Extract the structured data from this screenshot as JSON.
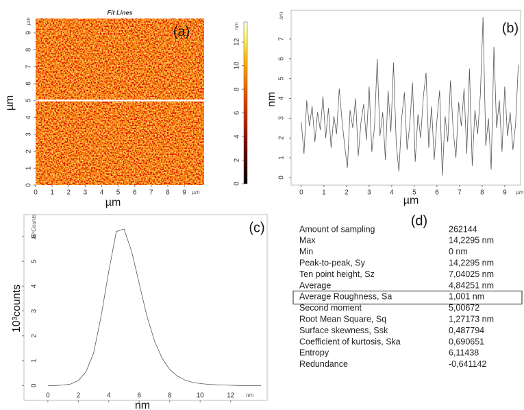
{
  "chart_data": [
    {
      "type": "heatmap",
      "title": "Fit Lines",
      "panel": "(a)",
      "xlabel": "µm",
      "ylabel": "µm",
      "axis_unit": "µm",
      "xlim": [
        0,
        10.2
      ],
      "ylim": [
        0,
        9.85
      ],
      "xticks": [
        0,
        1,
        2,
        3,
        4,
        5,
        6,
        7,
        8,
        9
      ],
      "yticks": [
        0,
        1,
        2,
        3,
        4,
        5,
        6,
        7,
        8,
        9
      ],
      "profile_line": 5,
      "colorbar_unit": "nm",
      "zlim": [
        0,
        13.7
      ],
      "zticks": [
        0,
        2,
        4,
        6,
        8,
        10,
        12
      ]
    },
    {
      "type": "line",
      "panel": "(b)",
      "xlabel": "µm",
      "ylabel": "nm",
      "x_unit": "µm",
      "y_unit": "nm",
      "color": "#555555",
      "xlim": [
        -0.45,
        9.7
      ],
      "ylim": [
        -0.38,
        8.45
      ],
      "xticks": [
        0,
        1,
        2,
        3,
        4,
        5,
        6,
        7,
        8,
        9
      ],
      "yticks": [
        0,
        1,
        2,
        3,
        4,
        5,
        6,
        7
      ],
      "x": [
        0,
        0.12,
        0.24,
        0.36,
        0.48,
        0.6,
        0.72,
        0.84,
        0.96,
        1.08,
        1.2,
        1.32,
        1.44,
        1.56,
        1.68,
        1.8,
        1.92,
        2.04,
        2.16,
        2.28,
        2.4,
        2.52,
        2.64,
        2.76,
        2.88,
        3,
        3.12,
        3.24,
        3.36,
        3.48,
        3.6,
        3.72,
        3.84,
        3.96,
        4.08,
        4.2,
        4.32,
        4.44,
        4.56,
        4.68,
        4.8,
        4.92,
        5.04,
        5.16,
        5.28,
        5.4,
        5.52,
        5.64,
        5.76,
        5.88,
        6,
        6.12,
        6.24,
        6.36,
        6.48,
        6.6,
        6.72,
        6.84,
        6.96,
        7.08,
        7.2,
        7.32,
        7.44,
        7.56,
        7.68,
        7.8,
        7.92,
        8.04,
        8.16,
        8.28,
        8.4,
        8.52,
        8.64,
        8.76,
        8.88,
        9,
        9.12,
        9.24,
        9.36,
        9.48,
        9.6
      ],
      "values": [
        2.8,
        1.2,
        3.9,
        2.6,
        3.6,
        1.8,
        3.3,
        2.4,
        4.1,
        2.0,
        3.5,
        1.5,
        3.1,
        2.2,
        4.5,
        2.9,
        1.6,
        0.5,
        3.4,
        2.5,
        4.0,
        1.1,
        2.8,
        3.7,
        1.9,
        4.6,
        1.3,
        2.6,
        6.0,
        2.1,
        3.3,
        0.9,
        4.4,
        2.3,
        5.8,
        1.7,
        0.3,
        3.0,
        4.3,
        1.4,
        2.7,
        4.8,
        0.8,
        3.2,
        2.0,
        4.1,
        5.3,
        1.5,
        3.6,
        0.9,
        2.9,
        4.4,
        0.1,
        3.1,
        1.8,
        4.9,
        2.4,
        1.0,
        3.8,
        2.6,
        4.5,
        1.2,
        5.5,
        0.6,
        3.4,
        2.2,
        4.2,
        8.1,
        1.6,
        3.0,
        0.4,
        6.6,
        2.5,
        3.9,
        1.3,
        4.6,
        2.1,
        3.3,
        1.4,
        2.7,
        5.7
      ]
    },
    {
      "type": "line",
      "panel": "(c)",
      "xlabel": "nm",
      "ylabel": "10³counts",
      "x_unit": "nm",
      "y_unit": "10³Counts",
      "color": "#555555",
      "xlim": [
        -1.57,
        14.4
      ],
      "ylim": [
        -0.6,
        6.88
      ],
      "xticks": [
        0,
        2,
        4,
        6,
        8,
        10,
        12
      ],
      "yticks": [
        0,
        1,
        2,
        3,
        4,
        5,
        6
      ],
      "x": [
        0,
        0.5,
        1,
        1.5,
        2,
        2.5,
        3,
        3.5,
        4,
        4.5,
        5,
        5.5,
        6,
        6.5,
        7,
        7.5,
        8,
        8.5,
        9,
        9.5,
        10,
        10.5,
        11,
        11.5,
        12,
        12.5,
        13,
        13.5,
        14
      ],
      "values": [
        0,
        0,
        0.02,
        0.06,
        0.2,
        0.55,
        1.3,
        2.8,
        4.6,
        6.2,
        6.3,
        5.4,
        4.1,
        2.8,
        1.8,
        1.1,
        0.65,
        0.38,
        0.22,
        0.13,
        0.08,
        0.05,
        0.03,
        0.02,
        0.01,
        0,
        0,
        0,
        0
      ]
    }
  ],
  "table": {
    "panel": "(d)",
    "highlight_row": 6,
    "rows": [
      [
        "Amount of sampling",
        "262144"
      ],
      [
        "Max",
        "14,2295 nm"
      ],
      [
        "Min",
        "0 nm"
      ],
      [
        "Peak-to-peak, Sy",
        "14,2295 nm"
      ],
      [
        "Ten point height, Sz",
        "7,04025 nm"
      ],
      [
        "Average",
        "4,84251 nm"
      ],
      [
        "Average Roughness, Sa",
        "1,001 nm"
      ],
      [
        "Second moment",
        "5,00672"
      ],
      [
        "Root Mean Square, Sq",
        "1,27173 nm"
      ],
      [
        "Surface skewness, Ssk",
        "0,487794"
      ],
      [
        "Coefficient of kurtosis, Ska",
        "0,690651"
      ],
      [
        "Entropy",
        "6,11438"
      ],
      [
        "Redundance",
        "-0,641142"
      ]
    ]
  }
}
